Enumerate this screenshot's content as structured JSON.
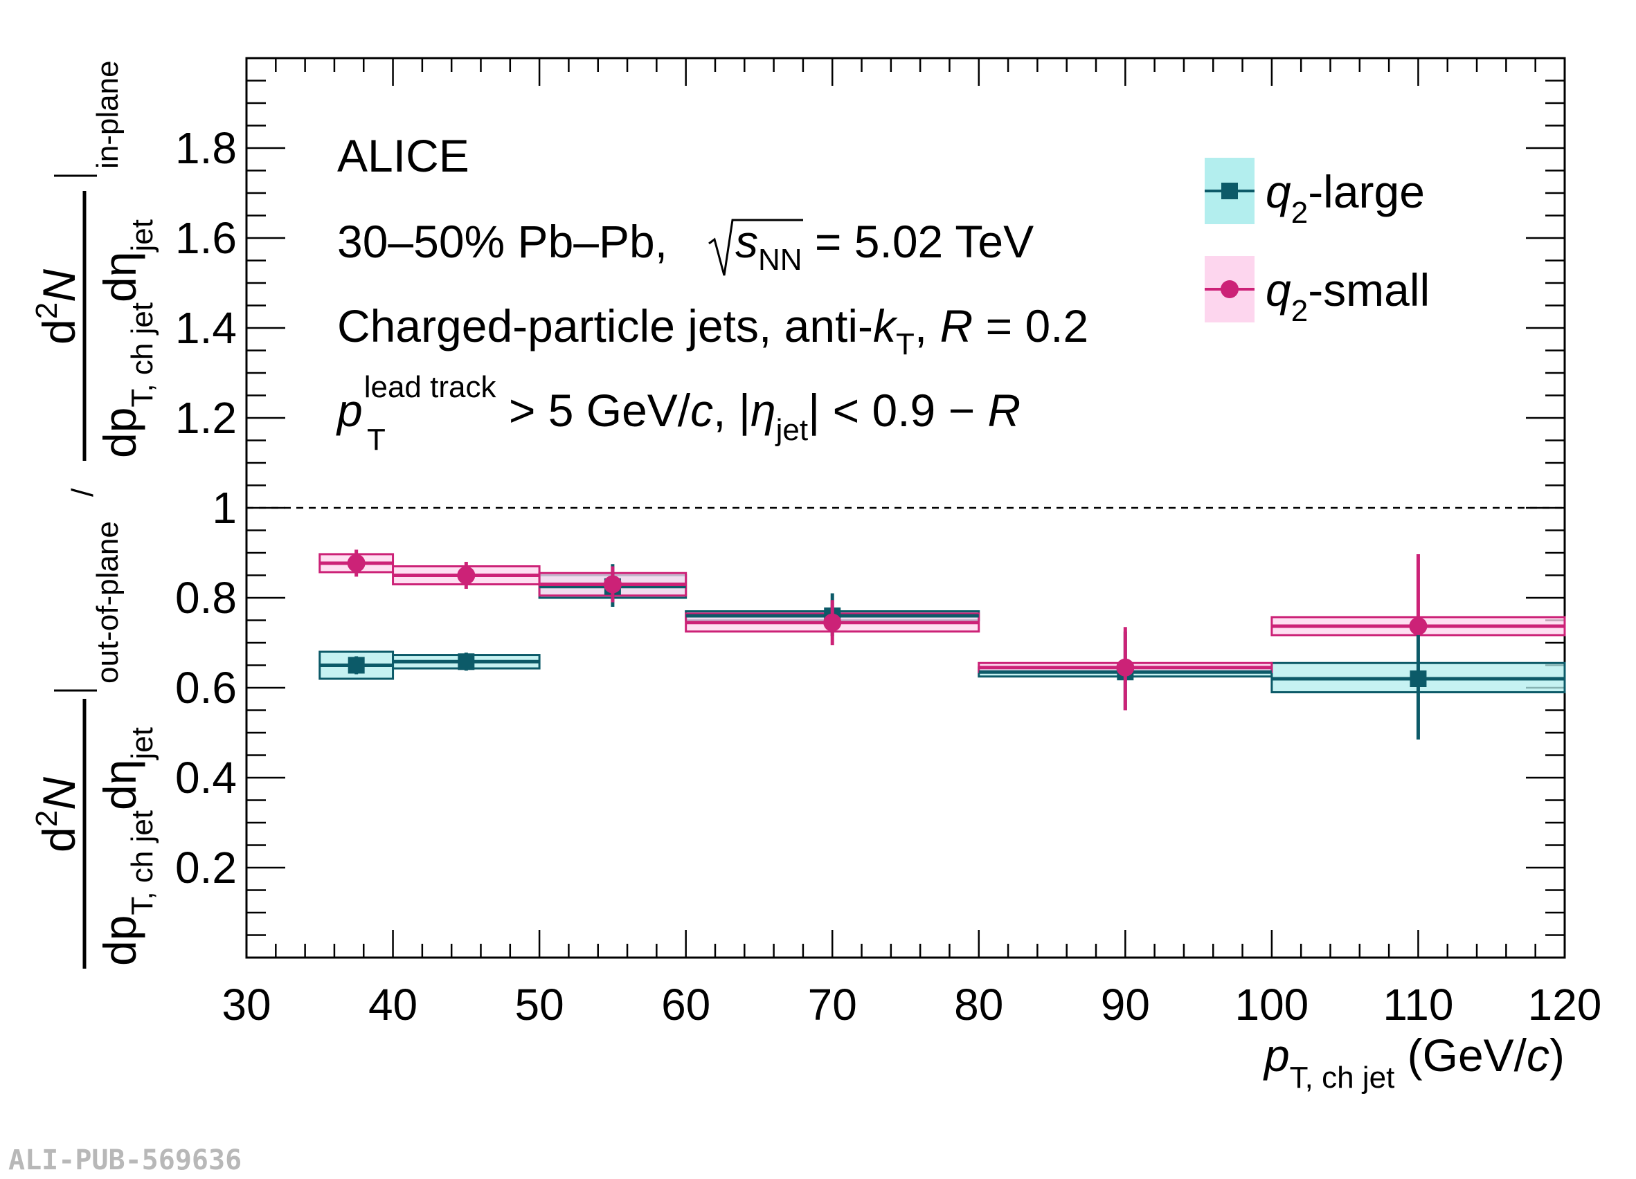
{
  "chart_data": {
    "type": "scatter",
    "xlim": [
      30,
      120
    ],
    "ylim": [
      0,
      2
    ],
    "xticks": [
      30,
      40,
      50,
      60,
      70,
      80,
      90,
      100,
      110,
      120
    ],
    "yticks": [
      0.2,
      0.4,
      0.6,
      0.8,
      1,
      1.2,
      1.4,
      1.6,
      1.8
    ],
    "ytick_labels": [
      "0.2",
      "0.4",
      "0.6",
      "0.8",
      "1",
      "1.2",
      "1.4",
      "1.6",
      "1.8"
    ],
    "reference_line": 1,
    "xlabel": {
      "main": "p",
      "sub": "T, ch jet",
      "unit_open": " (GeV/",
      "unit_c": "c",
      "unit_close": ")"
    },
    "ylabel": {
      "numerator_top": {
        "d": "d",
        "sup": "2",
        "N": "N",
        "dp": "dp",
        "sub": "T, ch jet",
        "deta": "dη",
        "eta_sub": "jet",
        "cond": "in-plane"
      },
      "slash": "/",
      "numerator_bottom": {
        "d": "d",
        "sup": "2",
        "N": "N",
        "dp": "dp",
        "sub": "T, ch jet",
        "deta": "dη",
        "eta_sub": "jet",
        "cond": "out-of-plane"
      }
    },
    "annotations": {
      "experiment": "ALICE",
      "system": {
        "prefix": "30–50% Pb–Pb, ",
        "s": "s",
        "nn": "NN",
        "suffix": " = 5.02 TeV"
      },
      "jets": {
        "prefix": "Charged-particle jets, anti-",
        "k": "k",
        "kT": "T",
        "mid": ", ",
        "R": "R",
        "suffix": " = 0.2"
      },
      "cuts": {
        "p": "p",
        "lead": "lead track",
        "T": "T",
        "mid": " > 5 GeV/",
        "c": "c",
        "abs_open": ", |",
        "eta": "η",
        "jet": "jet",
        "abs_close": "| < 0.9 − ",
        "R": "R"
      }
    },
    "legend": {
      "position": "top-right"
    },
    "series": [
      {
        "name": "q2-large",
        "label_q": "q",
        "label_sub": "2",
        "label_rest": "-large",
        "marker": "square",
        "color": "#0c5a68",
        "box_fill": "#b3eeee",
        "points": [
          {
            "x": 37.5,
            "xlo": 35,
            "xhi": 40,
            "y": 0.65,
            "stat_lo": 0.02,
            "stat_hi": 0.02,
            "sys_lo": 0.03,
            "sys_hi": 0.03
          },
          {
            "x": 45,
            "xlo": 40,
            "xhi": 50,
            "y": 0.658,
            "stat_lo": 0.02,
            "stat_hi": 0.02,
            "sys_lo": 0.015,
            "sys_hi": 0.015
          },
          {
            "x": 55,
            "xlo": 50,
            "xhi": 60,
            "y": 0.825,
            "stat_lo": 0.045,
            "stat_hi": 0.05,
            "sys_lo": 0.025,
            "sys_hi": 0.025
          },
          {
            "x": 70,
            "xlo": 60,
            "xhi": 80,
            "y": 0.76,
            "stat_lo": 0.045,
            "stat_hi": 0.05,
            "sys_lo": 0.01,
            "sys_hi": 0.01
          },
          {
            "x": 90,
            "xlo": 80,
            "xhi": 100,
            "y": 0.635,
            "stat_lo": 0.085,
            "stat_hi": 0.09,
            "sys_lo": 0.01,
            "sys_hi": 0.01
          },
          {
            "x": 110,
            "xlo": 100,
            "xhi": 120,
            "y": 0.62,
            "stat_lo": 0.135,
            "stat_hi": 0.135,
            "sys_lo": 0.03,
            "sys_hi": 0.035
          }
        ]
      },
      {
        "name": "q2-small",
        "label_q": "q",
        "label_sub": "2",
        "label_rest": "-small",
        "marker": "circle",
        "color": "#cc2277",
        "box_fill": "#fdd6ee",
        "points": [
          {
            "x": 37.5,
            "xlo": 35,
            "xhi": 40,
            "y": 0.877,
            "stat_lo": 0.03,
            "stat_hi": 0.03,
            "sys_lo": 0.02,
            "sys_hi": 0.02
          },
          {
            "x": 45,
            "xlo": 40,
            "xhi": 50,
            "y": 0.85,
            "stat_lo": 0.03,
            "stat_hi": 0.03,
            "sys_lo": 0.02,
            "sys_hi": 0.02
          },
          {
            "x": 55,
            "xlo": 50,
            "xhi": 60,
            "y": 0.83,
            "stat_lo": 0.04,
            "stat_hi": 0.04,
            "sys_lo": 0.025,
            "sys_hi": 0.025
          },
          {
            "x": 70,
            "xlo": 60,
            "xhi": 80,
            "y": 0.745,
            "stat_lo": 0.05,
            "stat_hi": 0.05,
            "sys_lo": 0.02,
            "sys_hi": 0.02
          },
          {
            "x": 90,
            "xlo": 80,
            "xhi": 100,
            "y": 0.645,
            "stat_lo": 0.095,
            "stat_hi": 0.09,
            "sys_lo": 0.01,
            "sys_hi": 0.01
          },
          {
            "x": 110,
            "xlo": 100,
            "xhi": 120,
            "y": 0.737,
            "stat_lo": 0.0,
            "stat_hi": 0.16,
            "sys_lo": 0.02,
            "sys_hi": 0.02
          }
        ]
      }
    ]
  },
  "watermark": "ALI-PUB-569636"
}
